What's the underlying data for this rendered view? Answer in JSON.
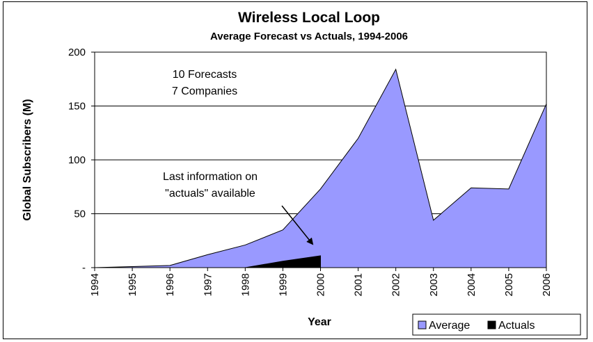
{
  "chart_data": {
    "type": "area",
    "title": "Wireless Local Loop",
    "subtitle": "Average Forecast vs Actuals, 1994-2006",
    "xlabel": "Year",
    "ylabel": "Global Subscribers (M)",
    "ylim": [
      0,
      200
    ],
    "yticks": [
      0,
      50,
      100,
      150,
      200
    ],
    "ytick_labels": [
      "-",
      "50",
      "100",
      "150",
      "200"
    ],
    "categories": [
      "1994",
      "1995",
      "1996",
      "1997",
      "1998",
      "1999",
      "2000",
      "2001",
      "2002",
      "2003",
      "2004",
      "2005",
      "2006"
    ],
    "series": [
      {
        "name": "Average",
        "color": "#9999ff",
        "values": [
          0,
          1,
          2,
          12,
          21,
          35,
          73,
          120,
          184,
          44,
          74,
          73,
          152
        ]
      },
      {
        "name": "Actuals",
        "color": "#000000",
        "values": [
          null,
          null,
          null,
          null,
          0,
          6,
          11,
          null,
          null,
          null,
          null,
          null,
          null
        ]
      }
    ],
    "grid": "horizontal",
    "legend": "bottom-right",
    "annotations": [
      {
        "text_lines": [
          "10 Forecasts",
          "7 Companies"
        ]
      },
      {
        "text_lines": [
          "Last information on",
          "\"actuals\" available"
        ],
        "arrow_to": "Actuals 2000"
      }
    ]
  }
}
